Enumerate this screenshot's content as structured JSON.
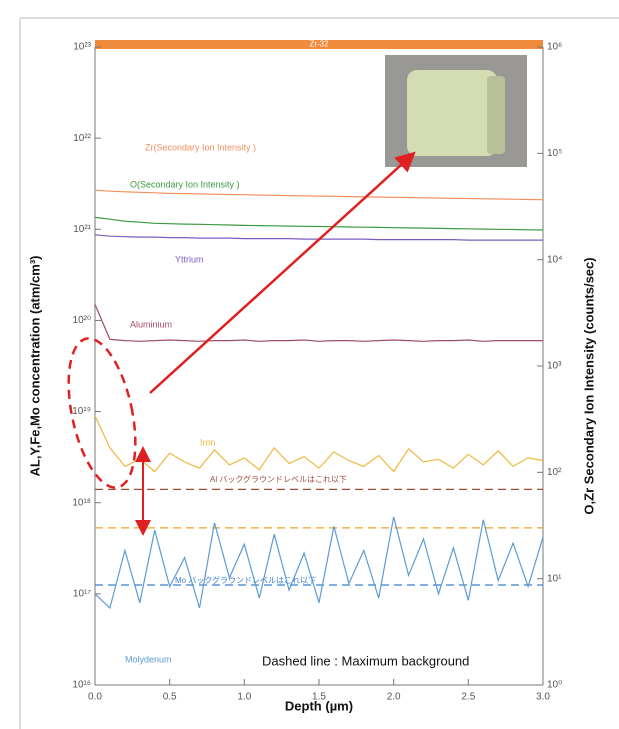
{
  "chart_data": {
    "type": "line",
    "depth_bar_label": "Zr-32",
    "xlabel": "Depth (µm)",
    "ylabel": "AL,Y,Fe,Mo concentration (atm/cm³)",
    "y2label": "O,Zr Secondary Ion Intensity (counts/sec)",
    "annotation": "Dashed line : Maximum background",
    "yscale": "log",
    "y2scale": "log",
    "xlim": [
      0,
      3
    ],
    "xticks": [
      {
        "value": 0,
        "label": "0.0"
      },
      0.5,
      {
        "value": 1,
        "label": "1.0"
      },
      1.5,
      {
        "value": 2,
        "label": "2.0"
      },
      2.5,
      {
        "value": 3,
        "label": "3.0"
      }
    ],
    "ylim": [
      1e+16,
      1e+23
    ],
    "yticks": [
      {
        "value": 1e+16,
        "label": "10¹⁶"
      },
      {
        "value": 1e+17,
        "label": "10¹⁷"
      },
      {
        "value": 1e+18,
        "label": "10¹⁸"
      },
      {
        "value": 1e+19,
        "label": "10¹⁹"
      },
      {
        "value": 1e+20,
        "label": "10²⁰"
      },
      {
        "value": 1e+21,
        "label": "10²¹"
      },
      {
        "value": 1e+22,
        "label": "10²²"
      },
      {
        "value": 1e+23,
        "label": "10²³"
      }
    ],
    "y2lim": [
      1,
      1000000
    ],
    "y2ticks": [
      {
        "value": 1,
        "label": "10⁰"
      },
      {
        "value": 10,
        "label": "10¹"
      },
      {
        "value": 100,
        "label": "10²"
      },
      {
        "value": 1000,
        "label": "10³"
      },
      {
        "value": 10000,
        "label": "10⁴"
      },
      {
        "value": 100000,
        "label": "10⁵"
      },
      {
        "value": 1000000,
        "label": "10⁶"
      }
    ],
    "x": [
      0,
      0.1,
      0.2,
      0.3,
      0.4,
      0.5,
      0.6,
      0.7,
      0.8,
      0.9,
      1,
      1.1,
      1.2,
      1.3,
      1.4,
      1.5,
      1.6,
      1.7,
      1.8,
      1.9,
      2,
      2.1,
      2.2,
      2.3,
      2.4,
      2.5,
      2.6,
      2.7,
      2.8,
      2.9,
      3
    ],
    "series": [
      {
        "name": "Zr(Secondary Ion Intensity )",
        "color": "#f29060",
        "axis": "y2",
        "values": [
          45000,
          44000,
          43500,
          43000,
          42500,
          42000,
          41800,
          41500,
          41200,
          41000,
          40800,
          40500,
          40300,
          40000,
          39800,
          39600,
          39400,
          39200,
          39000,
          38800,
          38600,
          38400,
          38200,
          38000,
          37800,
          37600,
          37400,
          37200,
          37000,
          36800,
          36600
        ]
      },
      {
        "name": "O(Secondary Ion Intensity )",
        "color": "#3a9a40",
        "axis": "y2",
        "values": [
          25000,
          24000,
          23000,
          22500,
          22000,
          21800,
          21600,
          21500,
          21300,
          21200,
          21000,
          20900,
          20800,
          20700,
          20600,
          20500,
          20400,
          20300,
          20200,
          20100,
          20000,
          19900,
          19800,
          19700,
          19600,
          19500,
          19400,
          19300,
          19200,
          19100,
          19000
        ]
      },
      {
        "name": "Yttrium",
        "color": "#7a5cc0",
        "values": [
          8.7e+20,
          8.4e+20,
          8.3e+20,
          8.2e+20,
          8.2e+20,
          8.1e+20,
          8.1e+20,
          8e+20,
          8e+20,
          8e+20,
          7.9e+20,
          7.9e+20,
          7.9e+20,
          7.9e+20,
          7.8e+20,
          7.8e+20,
          7.8e+20,
          7.8e+20,
          7.8e+20,
          7.7e+20,
          7.7e+20,
          7.7e+20,
          7.7e+20,
          7.7e+20,
          7.7e+20,
          7.6e+20,
          7.6e+20,
          7.6e+20,
          7.6e+20,
          7.6e+20,
          7.6e+20
        ]
      },
      {
        "name": "Aluminium",
        "color": "#a04e6a",
        "values": [
          1.5e+20,
          6.2e+19,
          6e+19,
          5.9e+19,
          6e+19,
          6.1e+19,
          6e+19,
          5.9e+19,
          6e+19,
          6e+19,
          6.1e+19,
          5.9e+19,
          6e+19,
          6e+19,
          6.1e+19,
          5.9e+19,
          6e+19,
          6e+19,
          5.9e+19,
          6e+19,
          6.1e+19,
          6e+19,
          5.9e+19,
          6e+19,
          6e+19,
          6.1e+19,
          5.9e+19,
          6e+19,
          6e+19,
          6e+19,
          6e+19
        ]
      },
      {
        "name": "Iron",
        "color": "#f0b840",
        "values": [
          9e+18,
          4e+18,
          2.5e+18,
          3e+18,
          2.2e+18,
          3.5e+18,
          2.8e+18,
          2.4e+18,
          3.8e+18,
          2.6e+18,
          3.1e+18,
          2.3e+18,
          4e+18,
          2.7e+18,
          3.2e+18,
          2.4e+18,
          3.6e+18,
          2.9e+18,
          2.5e+18,
          3.3e+18,
          2.2e+18,
          3.9e+18,
          2.8e+18,
          3e+18,
          2.4e+18,
          3.4e+18,
          2.6e+18,
          3.7e+18,
          2.5e+18,
          3.1e+18,
          2.9e+18
        ]
      },
      {
        "name": "Molydenum",
        "color": "#5b9bd5",
        "values": [
          1e+17,
          7e+16,
          3e+17,
          8e+16,
          5e+17,
          1.2e+17,
          2.5e+17,
          7e+16,
          6e+17,
          1.5e+17,
          3.5e+17,
          9e+16,
          4.5e+17,
          1.1e+17,
          2.8e+17,
          8e+16,
          5.5e+17,
          1.3e+17,
          3e+17,
          9e+16,
          7e+17,
          1.6e+17,
          4e+17,
          1e+17,
          3.2e+17,
          8.5e+16,
          6.5e+17,
          1.4e+17,
          3.6e+17,
          1.2e+17,
          4.2e+17
        ]
      }
    ],
    "reference_lines": [
      {
        "value": 1.4e+18,
        "color": "#a04e3a",
        "label": "Al バックグラウンドレベルはこれ以下"
      },
      {
        "value": 5.3e+17,
        "color": "#f0a020"
      },
      {
        "value": 1.25e+17,
        "color": "#3b7fd0",
        "label": "Mo バックグラウンドレベルはこれ以下"
      }
    ]
  }
}
